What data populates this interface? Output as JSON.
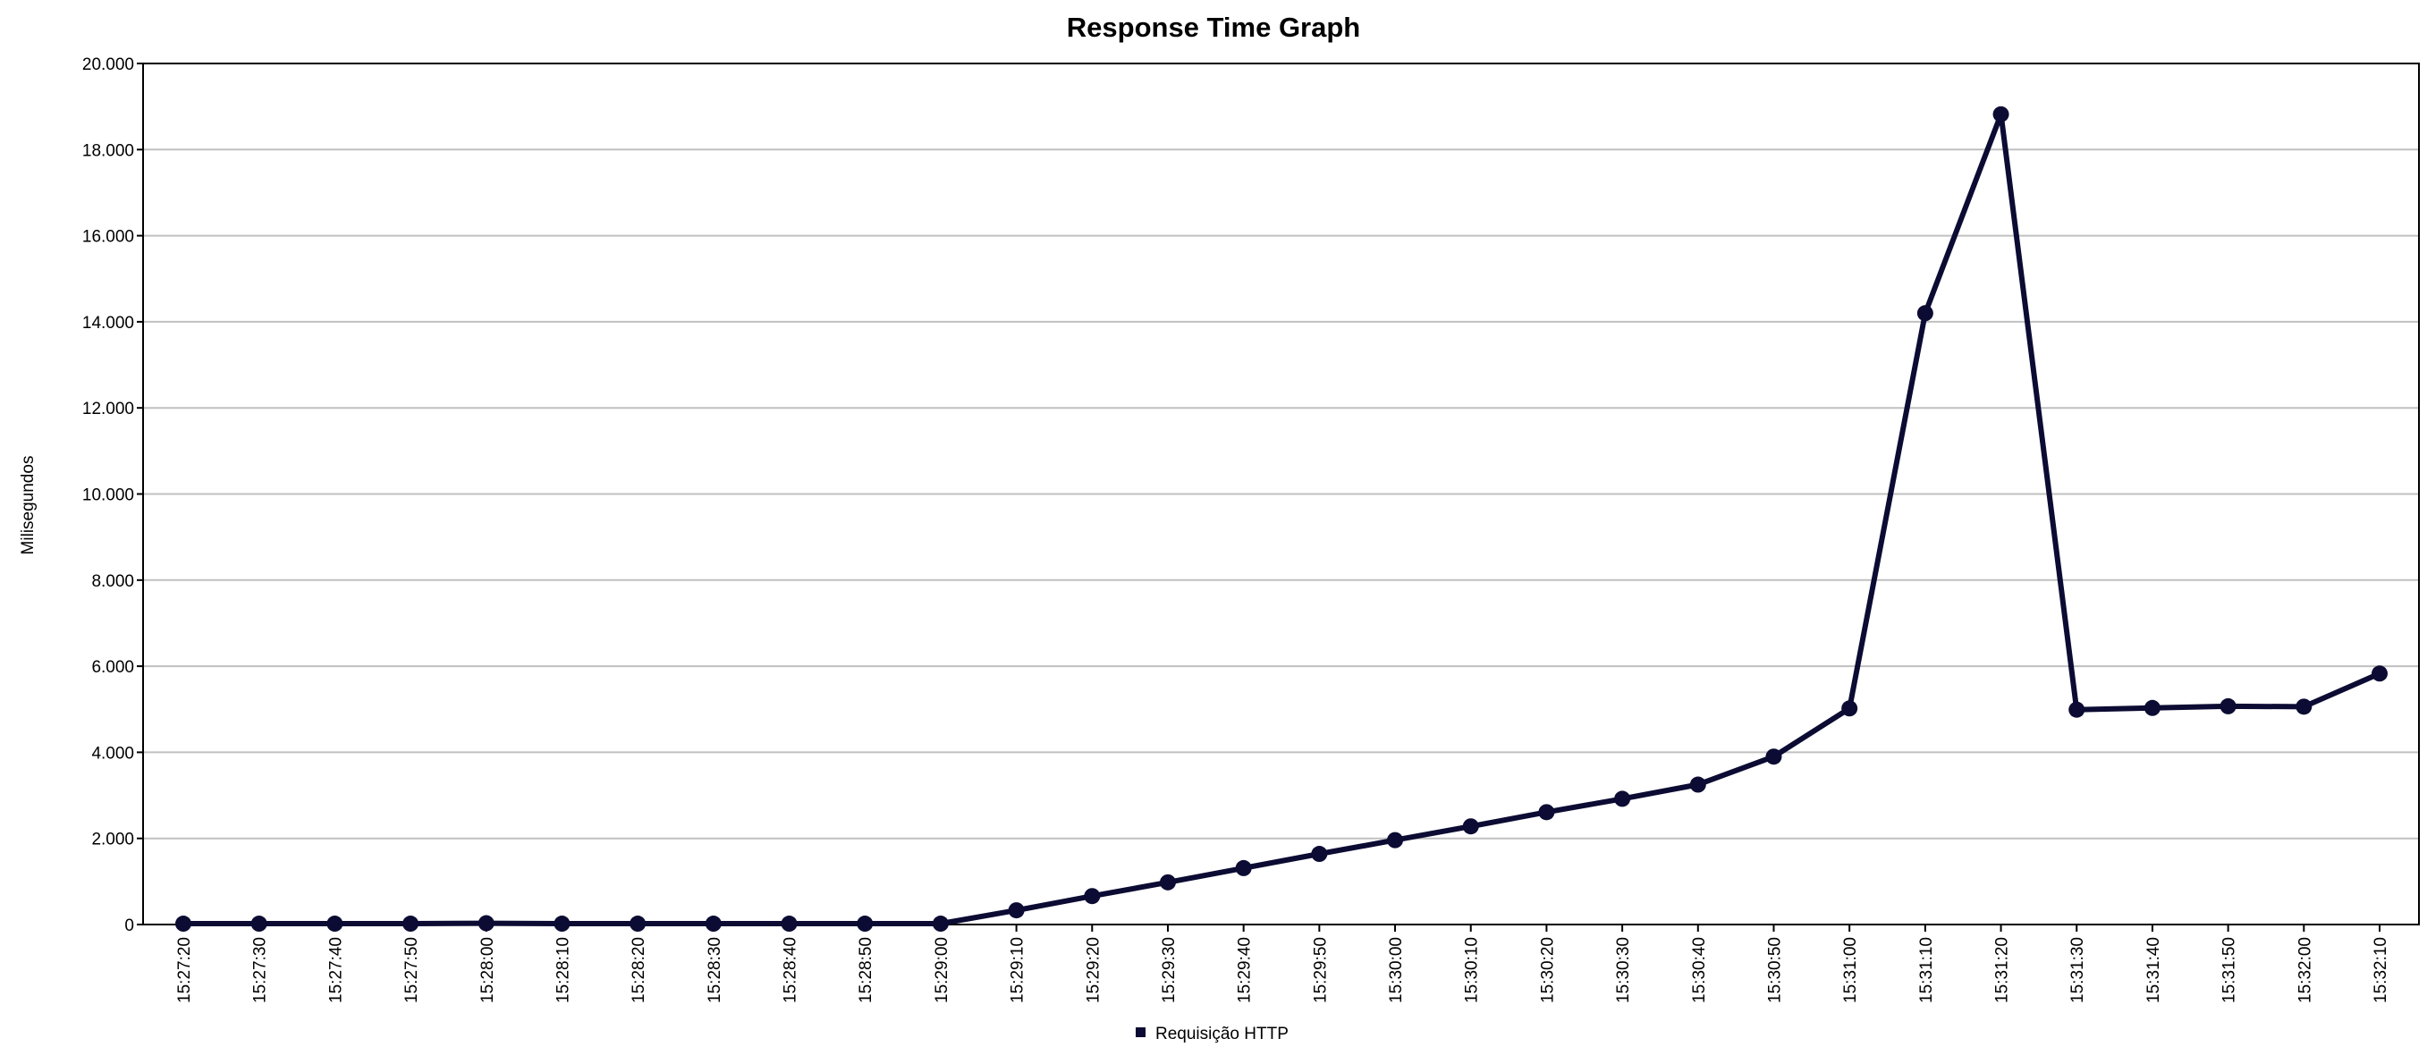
{
  "chart_data": {
    "type": "line",
    "title": "Response Time Graph",
    "xlabel": "",
    "ylabel": "Milisegundos",
    "ylim": [
      0,
      20000
    ],
    "yticks": [
      "0",
      "2.000",
      "4.000",
      "6.000",
      "8.000",
      "10.000",
      "12.000",
      "14.000",
      "16.000",
      "18.000",
      "20.000"
    ],
    "grid": "horizontal",
    "legend_position": "bottom",
    "categories": [
      "15:27:20",
      "15:27:30",
      "15:27:40",
      "15:27:50",
      "15:28:00",
      "15:28:10",
      "15:28:20",
      "15:28:30",
      "15:28:40",
      "15:28:50",
      "15:29:00",
      "15:29:10",
      "15:29:20",
      "15:29:30",
      "15:29:40",
      "15:29:50",
      "15:30:00",
      "15:30:10",
      "15:30:20",
      "15:30:30",
      "15:30:40",
      "15:30:50",
      "15:31:00",
      "15:31:10",
      "15:31:20",
      "15:31:30",
      "15:31:40",
      "15:31:50",
      "15:32:00",
      "15:32:10"
    ],
    "series": [
      {
        "name": "Requisição HTTP",
        "color": "#0b0b33",
        "values": [
          20,
          20,
          20,
          20,
          30,
          20,
          20,
          20,
          20,
          20,
          20,
          330,
          660,
          980,
          1310,
          1640,
          1960,
          2280,
          2610,
          2920,
          3250,
          3900,
          5020,
          14200,
          18820,
          4990,
          5030,
          5070,
          5060,
          5830
        ]
      }
    ]
  }
}
